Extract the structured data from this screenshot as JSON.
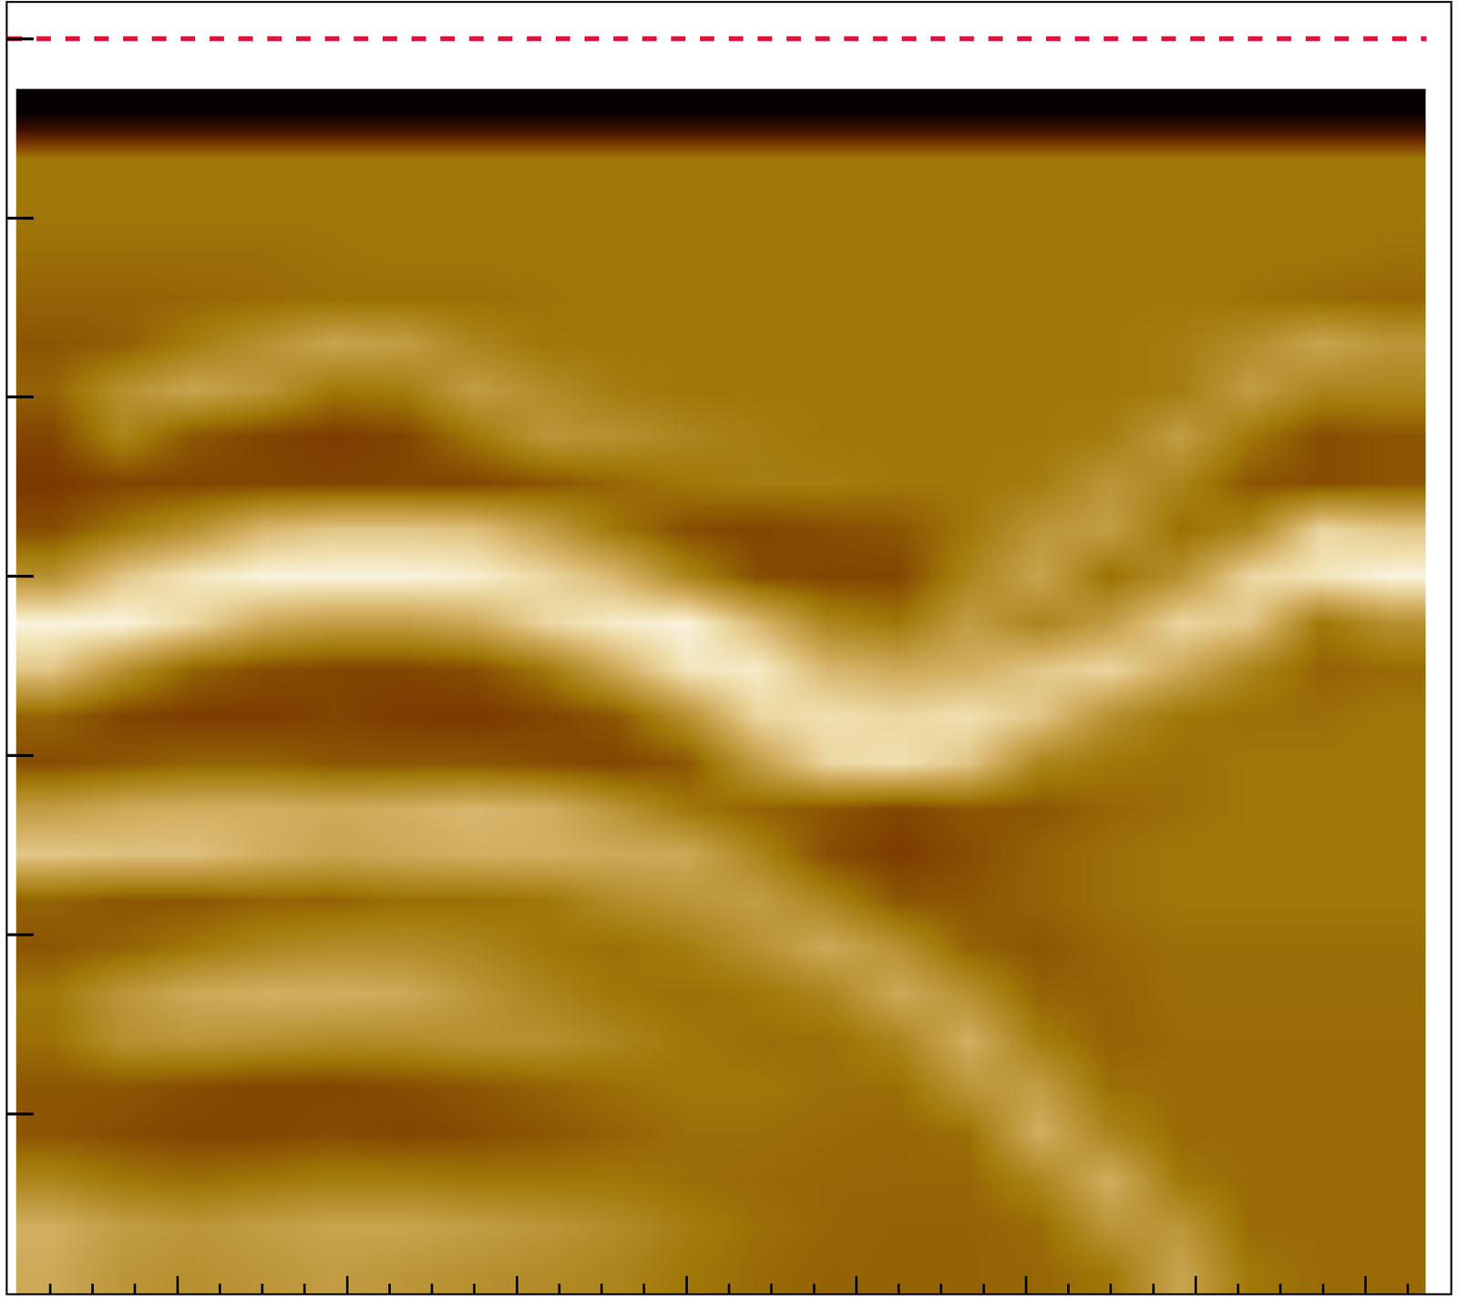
{
  "chart_data": {
    "type": "heatmap",
    "x": [
      0.26,
      0.68,
      1.09,
      1.51,
      1.92,
      2.34,
      2.75,
      3.17,
      3.58,
      4.0,
      4.42,
      4.83,
      5.25,
      5.66,
      6.08,
      6.49,
      6.91,
      7.32,
      7.74,
      8.15
    ],
    "y": [
      0.11,
      0.37,
      0.63,
      0.89,
      1.15,
      1.41,
      1.67,
      1.93,
      2.19,
      2.45,
      2.7,
      2.96,
      3.22,
      3.48,
      3.74,
      4.0,
      4.26,
      4.52,
      4.78,
      5.04,
      5.3,
      5.55,
      5.81,
      6.07,
      6.33,
      6.59
    ],
    "z": [
      [
        0.7,
        0.62,
        0.6,
        0.62,
        0.65,
        0.62,
        0.6,
        0.58,
        0.55,
        0.5,
        0.47,
        0.45,
        0.45,
        0.45,
        0.46,
        0.5,
        0.68,
        0.5,
        0.47,
        0.47
      ],
      [
        0.72,
        0.65,
        0.62,
        0.65,
        0.68,
        0.68,
        0.65,
        0.62,
        0.58,
        0.52,
        0.48,
        0.46,
        0.45,
        0.45,
        0.47,
        0.62,
        0.62,
        0.47,
        0.47,
        0.47
      ],
      [
        0.55,
        0.5,
        0.48,
        0.5,
        0.52,
        0.52,
        0.5,
        0.5,
        0.5,
        0.48,
        0.47,
        0.46,
        0.46,
        0.46,
        0.55,
        0.72,
        0.5,
        0.47,
        0.47,
        0.47
      ],
      [
        0.42,
        0.4,
        0.38,
        0.38,
        0.4,
        0.38,
        0.4,
        0.42,
        0.45,
        0.48,
        0.48,
        0.47,
        0.46,
        0.48,
        0.72,
        0.55,
        0.47,
        0.47,
        0.47,
        0.47
      ],
      [
        0.42,
        0.42,
        0.4,
        0.38,
        0.38,
        0.4,
        0.42,
        0.45,
        0.48,
        0.5,
        0.5,
        0.48,
        0.48,
        0.62,
        0.65,
        0.48,
        0.47,
        0.47,
        0.47,
        0.47
      ],
      [
        0.48,
        0.6,
        0.62,
        0.6,
        0.58,
        0.58,
        0.6,
        0.6,
        0.55,
        0.5,
        0.48,
        0.48,
        0.55,
        0.72,
        0.52,
        0.45,
        0.47,
        0.47,
        0.47,
        0.47
      ],
      [
        0.5,
        0.62,
        0.7,
        0.72,
        0.72,
        0.7,
        0.62,
        0.55,
        0.5,
        0.48,
        0.5,
        0.55,
        0.7,
        0.6,
        0.45,
        0.45,
        0.48,
        0.48,
        0.48,
        0.48
      ],
      [
        0.42,
        0.45,
        0.5,
        0.55,
        0.58,
        0.58,
        0.55,
        0.5,
        0.48,
        0.52,
        0.6,
        0.7,
        0.6,
        0.45,
        0.42,
        0.46,
        0.48,
        0.48,
        0.48,
        0.48
      ],
      [
        0.45,
        0.42,
        0.42,
        0.45,
        0.45,
        0.48,
        0.48,
        0.5,
        0.58,
        0.62,
        0.65,
        0.55,
        0.42,
        0.42,
        0.45,
        0.48,
        0.5,
        0.5,
        0.5,
        0.5
      ],
      [
        0.8,
        0.78,
        0.78,
        0.72,
        0.68,
        0.7,
        0.72,
        0.72,
        0.7,
        0.7,
        0.55,
        0.4,
        0.36,
        0.4,
        0.45,
        0.48,
        0.5,
        0.5,
        0.5,
        0.5
      ],
      [
        0.65,
        0.7,
        0.72,
        0.72,
        0.7,
        0.72,
        0.75,
        0.72,
        0.62,
        0.5,
        0.45,
        0.42,
        0.38,
        0.42,
        0.42,
        0.46,
        0.48,
        0.5,
        0.5,
        0.5
      ],
      [
        0.4,
        0.42,
        0.45,
        0.45,
        0.42,
        0.42,
        0.42,
        0.4,
        0.38,
        0.42,
        0.65,
        0.85,
        0.88,
        0.8,
        0.55,
        0.5,
        0.48,
        0.5,
        0.5,
        0.5
      ],
      [
        0.45,
        0.38,
        0.36,
        0.36,
        0.38,
        0.36,
        0.35,
        0.38,
        0.42,
        0.6,
        0.85,
        0.88,
        0.85,
        0.88,
        0.8,
        0.6,
        0.5,
        0.48,
        0.48,
        0.5
      ],
      [
        0.8,
        0.6,
        0.45,
        0.4,
        0.38,
        0.38,
        0.4,
        0.5,
        0.7,
        0.9,
        0.92,
        0.75,
        0.7,
        0.72,
        0.8,
        0.85,
        0.7,
        0.55,
        0.45,
        0.47
      ],
      [
        0.95,
        0.95,
        0.85,
        0.7,
        0.65,
        0.65,
        0.7,
        0.85,
        0.92,
        0.95,
        0.75,
        0.55,
        0.5,
        0.65,
        0.55,
        0.65,
        0.85,
        0.8,
        0.5,
        0.6
      ],
      [
        0.6,
        0.8,
        0.9,
        0.95,
        0.95,
        0.95,
        0.93,
        0.85,
        0.75,
        0.55,
        0.4,
        0.38,
        0.38,
        0.55,
        0.68,
        0.48,
        0.6,
        0.85,
        0.9,
        0.95
      ],
      [
        0.4,
        0.5,
        0.6,
        0.75,
        0.8,
        0.8,
        0.78,
        0.65,
        0.5,
        0.4,
        0.38,
        0.4,
        0.42,
        0.5,
        0.62,
        0.65,
        0.48,
        0.55,
        0.85,
        0.8
      ],
      [
        0.35,
        0.38,
        0.38,
        0.38,
        0.38,
        0.38,
        0.38,
        0.42,
        0.46,
        0.5,
        0.52,
        0.52,
        0.5,
        0.5,
        0.52,
        0.62,
        0.55,
        0.42,
        0.4,
        0.42
      ],
      [
        0.38,
        0.55,
        0.42,
        0.38,
        0.36,
        0.38,
        0.5,
        0.62,
        0.6,
        0.55,
        0.52,
        0.5,
        0.5,
        0.5,
        0.5,
        0.52,
        0.65,
        0.5,
        0.4,
        0.42
      ],
      [
        0.45,
        0.6,
        0.68,
        0.62,
        0.5,
        0.52,
        0.65,
        0.58,
        0.52,
        0.5,
        0.5,
        0.5,
        0.5,
        0.5,
        0.5,
        0.5,
        0.52,
        0.65,
        0.55,
        0.55
      ],
      [
        0.42,
        0.44,
        0.52,
        0.6,
        0.68,
        0.65,
        0.55,
        0.5,
        0.5,
        0.5,
        0.5,
        0.5,
        0.5,
        0.5,
        0.5,
        0.5,
        0.52,
        0.58,
        0.68,
        0.62
      ],
      [
        0.45,
        0.45,
        0.46,
        0.47,
        0.48,
        0.48,
        0.48,
        0.49,
        0.5,
        0.5,
        0.5,
        0.5,
        0.5,
        0.5,
        0.5,
        0.5,
        0.5,
        0.49,
        0.47,
        0.46
      ],
      [
        0.48,
        0.48,
        0.48,
        0.48,
        0.49,
        0.5,
        0.5,
        0.5,
        0.5,
        0.5,
        0.5,
        0.5,
        0.5,
        0.5,
        0.5,
        0.5,
        0.5,
        0.5,
        0.5,
        0.49
      ],
      [
        0.5,
        0.5,
        0.5,
        0.5,
        0.5,
        0.5,
        0.5,
        0.5,
        0.5,
        0.5,
        0.5,
        0.5,
        0.5,
        0.5,
        0.5,
        0.5,
        0.5,
        0.5,
        0.5,
        0.5
      ],
      [
        0.5,
        0.5,
        0.5,
        0.5,
        0.5,
        0.5,
        0.5,
        0.5,
        0.5,
        0.5,
        0.5,
        0.5,
        0.5,
        0.5,
        0.5,
        0.5,
        0.5,
        0.5,
        0.5,
        0.5
      ],
      [
        0.02,
        0.02,
        0.02,
        0.02,
        0.02,
        0.02,
        0.02,
        0.02,
        0.02,
        0.02,
        0.02,
        0.02,
        0.02,
        0.02,
        0.02,
        0.02,
        0.02,
        0.02,
        0.02,
        0.02
      ]
    ],
    "zlim": [
      0,
      1
    ],
    "xlim": [
      0,
      8.5
    ],
    "ylim": [
      0,
      7.2
    ],
    "xticks": [
      0,
      0.25,
      0.5,
      0.75,
      1,
      1.25,
      1.5,
      1.75,
      2,
      2.25,
      2.5,
      2.75,
      3,
      3.25,
      3.5,
      3.75,
      4,
      4.25,
      4.5,
      4.75,
      5,
      5.25,
      5.5,
      5.75,
      6,
      6.25,
      6.5,
      6.75,
      7,
      7.25,
      7.5,
      7.75,
      8,
      8.25
    ],
    "yticks": [
      0,
      1,
      2,
      3,
      4,
      5,
      6,
      7
    ],
    "tick_labels": false,
    "series": [
      {
        "type": "line",
        "x": [
          0,
          8.36
        ],
        "y": [
          7,
          7
        ],
        "color": "#dc143c",
        "line_style": "dashed"
      }
    ]
  }
}
